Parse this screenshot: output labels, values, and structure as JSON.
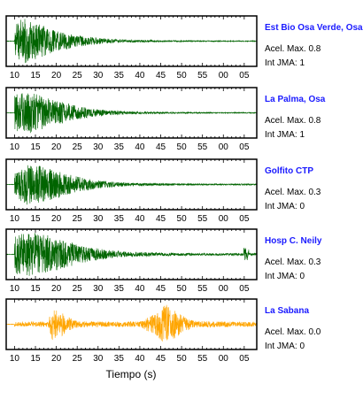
{
  "chart_data": {
    "type": "line",
    "xlabel": "Tiempo (s)",
    "x_tick_labels": [
      "10",
      "15",
      "20",
      "25",
      "30",
      "35",
      "40",
      "45",
      "50",
      "55",
      "00",
      "05"
    ],
    "stations": [
      {
        "name": "Est Bio Osa Verde, Osa",
        "accel_label": "Acel. Max. 0.8",
        "jma_label": "Int JMA: 1",
        "color": "#006400",
        "onset_s": 10,
        "burst_s": null,
        "envelope": [
          [
            10,
            0.9
          ],
          [
            13,
            1.0
          ],
          [
            16,
            0.75
          ],
          [
            20,
            0.45
          ],
          [
            25,
            0.25
          ],
          [
            30,
            0.14
          ],
          [
            35,
            0.08
          ],
          [
            40,
            0.05
          ],
          [
            50,
            0.03
          ],
          [
            60,
            0.02
          ],
          [
            68,
            0.02
          ]
        ]
      },
      {
        "name": "La Palma, Osa",
        "accel_label": "Acel. Max. 0.8",
        "jma_label": "Int JMA: 1",
        "color": "#006400",
        "onset_s": 10,
        "burst_s": null,
        "envelope": [
          [
            10,
            0.8
          ],
          [
            13,
            0.95
          ],
          [
            16,
            0.8
          ],
          [
            20,
            0.55
          ],
          [
            25,
            0.3
          ],
          [
            30,
            0.15
          ],
          [
            35,
            0.08
          ],
          [
            40,
            0.05
          ],
          [
            50,
            0.03
          ],
          [
            60,
            0.02
          ],
          [
            68,
            0.02
          ]
        ]
      },
      {
        "name": "Golfito CTP",
        "accel_label": "Acel. Max. 0.3",
        "jma_label": "Int JMA: 0",
        "color": "#006400",
        "onset_s": 10,
        "burst_s": null,
        "envelope": [
          [
            10,
            0.55
          ],
          [
            13,
            0.9
          ],
          [
            17,
            0.8
          ],
          [
            21,
            0.55
          ],
          [
            25,
            0.35
          ],
          [
            30,
            0.18
          ],
          [
            35,
            0.1
          ],
          [
            40,
            0.06
          ],
          [
            50,
            0.04
          ],
          [
            60,
            0.03
          ],
          [
            68,
            0.03
          ]
        ]
      },
      {
        "name": "Hosp C. Neily",
        "accel_label": "Acel. Max. 0.3",
        "jma_label": "Int JMA: 0",
        "color": "#006400",
        "onset_s": 10,
        "burst_s": 65.5,
        "envelope": [
          [
            10,
            0.85
          ],
          [
            14,
            1.0
          ],
          [
            18,
            0.85
          ],
          [
            22,
            0.6
          ],
          [
            27,
            0.35
          ],
          [
            32,
            0.2
          ],
          [
            37,
            0.12
          ],
          [
            45,
            0.07
          ],
          [
            55,
            0.05
          ],
          [
            65,
            0.05
          ],
          [
            68,
            0.05
          ]
        ]
      },
      {
        "name": "La Sabana",
        "accel_label": "Acel. Max. 0.0",
        "jma_label": "Int JMA: 0",
        "color": "#FFA500",
        "onset_s": 10,
        "burst_s": null,
        "envelope": [
          [
            10,
            0.1
          ],
          [
            18,
            0.12
          ],
          [
            19,
            0.7
          ],
          [
            21,
            0.55
          ],
          [
            23,
            0.3
          ],
          [
            25,
            0.15
          ],
          [
            30,
            0.12
          ],
          [
            40,
            0.12
          ],
          [
            44,
            0.5
          ],
          [
            46,
            0.9
          ],
          [
            48,
            0.7
          ],
          [
            50,
            0.4
          ],
          [
            53,
            0.15
          ],
          [
            60,
            0.12
          ],
          [
            68,
            0.1
          ]
        ]
      }
    ]
  }
}
